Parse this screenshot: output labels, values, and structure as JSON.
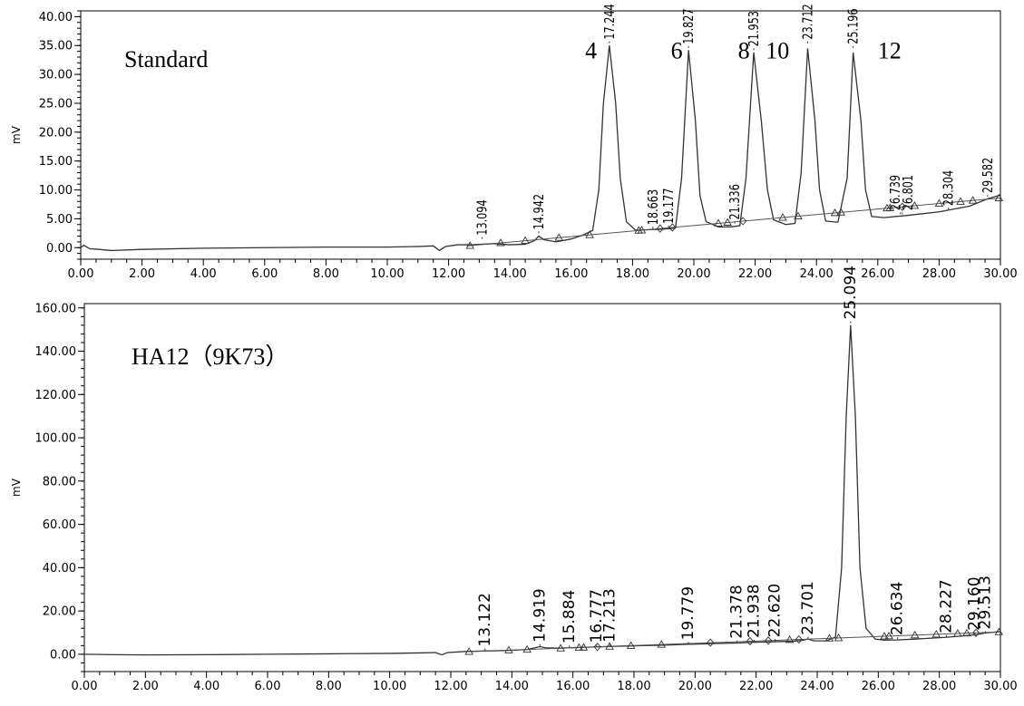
{
  "chart_data": [
    {
      "type": "line",
      "title": "Standard",
      "ylabel": "mV",
      "xlim": [
        0,
        30
      ],
      "ylim": [
        -2,
        41
      ],
      "x_ticks": [
        0,
        2,
        4,
        6,
        8,
        10,
        12,
        14,
        16,
        18,
        20,
        22,
        24,
        26,
        28,
        30
      ],
      "x_tick_labels": [
        "0.00",
        "2.00",
        "4.00",
        "6.00",
        "8.00",
        "10.00",
        "12.00",
        "14.00",
        "16.00",
        "18.00",
        "20.00",
        "22.00",
        "24.00",
        "26.00",
        "28.00",
        "30.00"
      ],
      "y_ticks": [
        0,
        5,
        10,
        15,
        20,
        25,
        30,
        35,
        40
      ],
      "y_tick_labels": [
        "0.00",
        "5.00",
        "10.00",
        "15.00",
        "20.00",
        "25.00",
        "30.00",
        "35.00",
        "40.00"
      ],
      "series": [
        {
          "x": [
            0,
            0.1,
            0.3,
            0.6,
            1,
            2,
            4,
            6,
            8,
            10,
            11,
            11.5,
            11.7,
            11.9,
            12.3,
            12.8,
            13.1,
            13.5,
            14,
            14.5,
            14.8,
            14.94,
            15.1,
            15.5,
            16,
            16.4,
            16.7,
            16.9,
            17.05,
            17.244,
            17.45,
            17.6,
            17.8,
            18.1,
            18.5,
            19,
            19.4,
            19.6,
            19.827,
            20.05,
            20.2,
            20.4,
            20.8,
            21.2,
            21.5,
            21.7,
            21.953,
            22.2,
            22.4,
            22.6,
            23,
            23.3,
            23.5,
            23.712,
            23.95,
            24.1,
            24.3,
            24.7,
            25,
            25.196,
            25.45,
            25.6,
            25.8,
            26.2,
            27,
            28,
            29,
            29.6,
            30
          ],
          "y": [
            0,
            0.4,
            -0.2,
            -0.3,
            -0.5,
            -0.3,
            -0.1,
            0,
            0.1,
            0.1,
            0.2,
            0.3,
            -0.5,
            0.2,
            0.5,
            0.5,
            0.6,
            0.7,
            0.5,
            0.6,
            1.2,
            2.0,
            1.4,
            1.0,
            1.5,
            2.2,
            3,
            10,
            25,
            35.0,
            25,
            12,
            4.5,
            3.0,
            3.1,
            3.2,
            3.4,
            12,
            34.2,
            22,
            9,
            4.5,
            3.6,
            3.6,
            3.8,
            12,
            33.8,
            22,
            10,
            4.8,
            4.0,
            4.2,
            13,
            34.5,
            22,
            10,
            4.6,
            4.4,
            12,
            33.8,
            22,
            10,
            5.4,
            5.2,
            5.6,
            6.2,
            7.2,
            8.5,
            9.1
          ]
        }
      ],
      "peak_labels": [
        "13.094",
        "14.942",
        "17.244",
        "18.663",
        "19.177",
        "19.827",
        "21.336",
        "21.953",
        "23.712",
        "25.196",
        "26.739",
        "26.801",
        "28.304",
        "29.582"
      ],
      "annotations": [
        "4",
        "6",
        "8",
        "10",
        "12"
      ]
    },
    {
      "type": "line",
      "title": "HA12（9K73）",
      "ylabel": "mV",
      "xlim": [
        0,
        30
      ],
      "ylim": [
        -8,
        162
      ],
      "x_ticks": [
        0,
        2,
        4,
        6,
        8,
        10,
        12,
        14,
        16,
        18,
        20,
        22,
        24,
        26,
        28,
        30
      ],
      "x_tick_labels": [
        "0.00",
        "2.00",
        "4.00",
        "6.00",
        "8.00",
        "10.00",
        "12.00",
        "14.00",
        "16.00",
        "18.00",
        "20.00",
        "22.00",
        "24.00",
        "26.00",
        "28.00",
        "30.00"
      ],
      "y_ticks": [
        0,
        20,
        40,
        60,
        80,
        100,
        120,
        140,
        160
      ],
      "y_tick_labels": [
        "0.00",
        "20.00",
        "40.00",
        "60.00",
        "80.00",
        "100.00",
        "120.00",
        "140.00",
        "160.00"
      ],
      "series": [
        {
          "x": [
            0,
            1,
            2,
            4,
            6,
            8,
            10,
            11,
            11.5,
            11.7,
            11.9,
            12.5,
            13.1,
            13.5,
            14,
            14.5,
            14.7,
            14.92,
            15.1,
            15.5,
            15.9,
            16.3,
            16.8,
            17.2,
            18,
            19,
            19.8,
            20.5,
            21.4,
            21.9,
            22.6,
            23.2,
            23.5,
            23.7,
            23.9,
            24.3,
            24.6,
            24.8,
            24.95,
            25.094,
            25.25,
            25.4,
            25.6,
            25.9,
            26.2,
            26.6,
            27.2,
            28.2,
            29.2,
            29.5,
            30
          ],
          "y": [
            0,
            -0.2,
            -0.3,
            -0.2,
            0,
            0.2,
            0.4,
            0.6,
            0.8,
            -0.3,
            0.8,
            1.3,
            1.5,
            1.6,
            1.8,
            2.2,
            2.8,
            3.5,
            3.0,
            2.8,
            3.0,
            3.2,
            3.4,
            3.6,
            3.9,
            4.2,
            4.6,
            4.9,
            5.2,
            5.5,
            5.8,
            6.0,
            6.4,
            7.0,
            6.2,
            6.2,
            8,
            40,
            110,
            152,
            110,
            40,
            12,
            7,
            6.5,
            6.6,
            7,
            7.8,
            9.0,
            9.8,
            10.5
          ]
        }
      ],
      "peak_labels": [
        "13.122",
        "14.919",
        "15.884",
        "16.777",
        "17.213",
        "19.779",
        "21.378",
        "21.938",
        "22.620",
        "23.701",
        "25.094",
        "26.634",
        "28.227",
        "29.160",
        "29.513"
      ]
    }
  ]
}
